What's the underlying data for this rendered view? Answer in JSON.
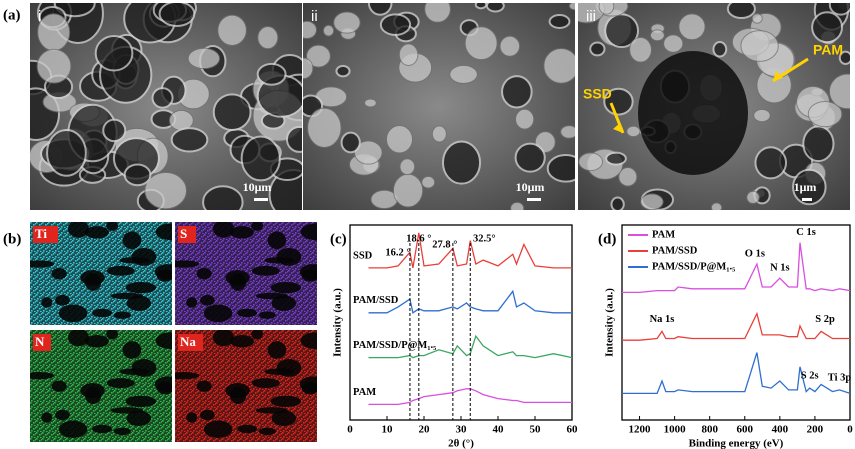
{
  "figure": {
    "panel_labels": [
      "(a)",
      "(b)",
      "(c)",
      "(d)"
    ],
    "sem_images": [
      {
        "label": "i",
        "scale_bar": "10μm"
      },
      {
        "label": "ii",
        "scale_bar": "10μm"
      },
      {
        "label": "iii",
        "scale_bar": "1μm",
        "annotations": [
          "PAM",
          "SSD"
        ]
      }
    ],
    "eds_maps": [
      {
        "label": "Ti",
        "color": "#33c9d8"
      },
      {
        "label": "S",
        "color": "#7a3fd0"
      },
      {
        "label": "N",
        "color": "#2fb84a"
      },
      {
        "label": "Na",
        "color": "#e0241e"
      }
    ]
  },
  "chart_data": [
    {
      "type": "line",
      "x_label": "2θ (°)",
      "y_label": "Intensity (a.u.)",
      "xlim": [
        0,
        60
      ],
      "xticks": [
        0,
        10,
        20,
        30,
        40,
        50,
        60
      ],
      "ylim": [
        0,
        100
      ],
      "x": [
        5,
        10,
        13,
        16.2,
        17,
        18.6,
        20,
        24,
        27.8,
        29,
        31.5,
        32.5,
        34,
        36,
        40,
        44,
        45,
        47,
        50,
        55,
        60
      ],
      "series": [
        {
          "name": "SSD",
          "color": "#e8403a",
          "values": [
            78,
            78,
            79,
            86,
            78,
            96,
            79,
            80,
            88,
            79,
            80,
            92,
            80,
            82,
            79,
            85,
            80,
            90,
            79,
            78,
            78
          ]
        },
        {
          "name": "PAM/SSD",
          "color": "#2f6fd0",
          "values": [
            55,
            55,
            58,
            62,
            55,
            57,
            56,
            56,
            58,
            57,
            60,
            58,
            57,
            56,
            56,
            66,
            58,
            60,
            56,
            55,
            55
          ]
        },
        {
          "name": "PAM/SSD/P@M₁.₅",
          "color": "#3aa860",
          "values": [
            32,
            32,
            32,
            33,
            32,
            33,
            33,
            36,
            34,
            38,
            33,
            34,
            43,
            38,
            33,
            35,
            33,
            33,
            32,
            34,
            32
          ]
        },
        {
          "name": "PAM",
          "color": "#d94fe0",
          "values": [
            8,
            8,
            8,
            9,
            10,
            11,
            12,
            13,
            14,
            15,
            16,
            16,
            15,
            13,
            11,
            10,
            10,
            9,
            9,
            9,
            9
          ]
        }
      ],
      "reference_lines": [
        {
          "value": 16.2,
          "label": "16.2 °"
        },
        {
          "value": 18.6,
          "label": "18.6 °"
        },
        {
          "value": 27.8,
          "label": "27.8 °"
        },
        {
          "value": 32.5,
          "label": "32.5°"
        }
      ]
    },
    {
      "type": "line",
      "x_label": "Binding energy (eV)",
      "y_label": "Intensity (a.u.)",
      "xlim": [
        1300,
        0
      ],
      "xticks": [
        1200,
        1000,
        800,
        600,
        400,
        200,
        0
      ],
      "ylim": [
        0,
        110
      ],
      "legend": "upper left",
      "x": [
        1300,
        1200,
        1100,
        1072,
        1050,
        1000,
        980,
        900,
        800,
        700,
        600,
        531,
        500,
        450,
        400,
        350,
        300,
        285,
        250,
        230,
        200,
        165,
        100,
        60,
        0
      ],
      "series": [
        {
          "name": "PAM",
          "color": "#d94fe0",
          "values": [
            72,
            72,
            73,
            73,
            73,
            73,
            75,
            74,
            74,
            74,
            74,
            88,
            75,
            75,
            80,
            75,
            75,
            100,
            74,
            74,
            73,
            74,
            73,
            74,
            73
          ]
        },
        {
          "name": "PAM/SSD",
          "color": "#e8403a",
          "values": [
            45,
            45,
            46,
            50,
            46,
            46,
            47,
            46,
            46,
            46,
            46,
            60,
            48,
            48,
            48,
            47,
            47,
            53,
            46,
            46,
            46,
            50,
            46,
            46,
            46
          ]
        },
        {
          "name": "PAM/SSD/P@M₁.₅",
          "color": "#2f6fd0",
          "values": [
            15,
            15,
            15,
            22,
            16,
            16,
            17,
            16,
            16,
            16,
            16,
            38,
            19,
            18,
            22,
            17,
            17,
            30,
            16,
            18,
            16,
            20,
            16,
            17,
            15
          ]
        }
      ],
      "annotations": [
        "O 1s",
        "C 1s",
        "N 1s",
        "Na 1s",
        "S 2p",
        "S 2s",
        "Ti 3p"
      ]
    }
  ]
}
